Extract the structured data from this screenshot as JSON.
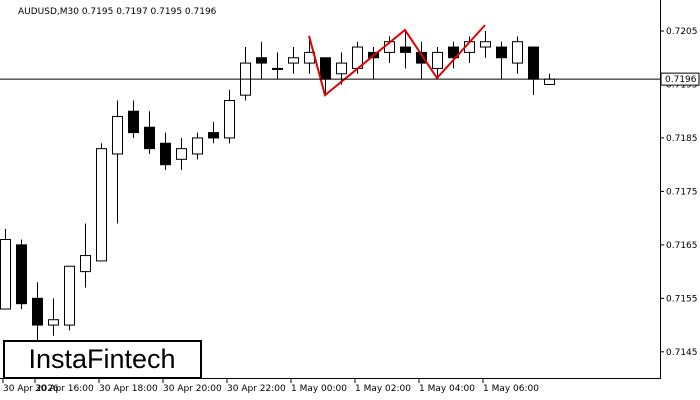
{
  "chart_data": {
    "type": "candlestick",
    "title": "AUDUSD,M30  0.7195 0.7197 0.7195 0.7196",
    "categories": [
      "30 Apr 2026",
      null,
      "30 Apr 16:00",
      null,
      null,
      null,
      "30 Apr 18:00",
      null,
      null,
      null,
      "30 Apr 20:00",
      null,
      null,
      null,
      "30 Apr 22:00",
      null,
      null,
      null,
      "1 May 00:00",
      null,
      null,
      null,
      "1 May 02:00",
      null,
      null,
      null,
      "1 May 04:00",
      null,
      null,
      null,
      "1 May 06:00",
      null,
      null,
      null,
      null
    ],
    "open": [
      0.7153,
      0.7165,
      0.7155,
      0.715,
      0.715,
      0.716,
      0.7162,
      0.7182,
      0.719,
      0.7187,
      0.7184,
      0.7181,
      0.7182,
      0.7186,
      0.7185,
      0.7193,
      0.72,
      0.7198,
      0.7199,
      0.7199,
      0.72,
      0.7197,
      0.7198,
      0.7201,
      0.7201,
      0.7202,
      0.7201,
      0.7198,
      0.7202,
      0.7201,
      0.7202,
      0.7202,
      0.7199,
      0.7202,
      0.7195
    ],
    "high": [
      0.7168,
      0.7166,
      0.7158,
      0.7155,
      0.7161,
      0.7169,
      0.7184,
      0.7192,
      0.7192,
      0.719,
      0.7186,
      0.7185,
      0.7186,
      0.7188,
      0.7194,
      0.7202,
      0.7203,
      0.7201,
      0.7202,
      0.7204,
      0.72,
      0.7201,
      0.7203,
      0.7202,
      0.7204,
      0.7205,
      0.7203,
      0.7202,
      0.7203,
      0.7204,
      0.7205,
      0.7203,
      0.7204,
      0.7202,
      0.7197
    ],
    "low": [
      0.7153,
      0.7153,
      0.7147,
      0.7148,
      0.7149,
      0.7157,
      0.7162,
      0.7169,
      0.7185,
      0.7182,
      0.7179,
      0.7179,
      0.7181,
      0.7184,
      0.7184,
      0.7192,
      0.7196,
      0.7196,
      0.7197,
      0.7197,
      0.7193,
      0.7195,
      0.7197,
      0.7196,
      0.7199,
      0.7198,
      0.7196,
      0.7196,
      0.7198,
      0.7199,
      0.72,
      0.7196,
      0.7197,
      0.7193,
      0.7195
    ],
    "close": [
      0.7166,
      0.7154,
      0.715,
      0.7151,
      0.7161,
      0.7163,
      0.7183,
      0.7189,
      0.7186,
      0.7183,
      0.718,
      0.7183,
      0.7185,
      0.7185,
      0.7192,
      0.7199,
      0.7199,
      0.7198,
      0.72,
      0.7201,
      0.7196,
      0.7199,
      0.7202,
      0.72,
      0.7203,
      0.7201,
      0.7199,
      0.7201,
      0.72,
      0.7203,
      0.7203,
      0.72,
      0.7203,
      0.7196,
      0.7196
    ],
    "pattern": {
      "color": "#e00000",
      "x": [
        19,
        20,
        25,
        27,
        30
      ],
      "values": [
        0.72041,
        0.7193,
        0.72052,
        0.71962,
        0.72061
      ]
    },
    "last_price": 0.7196,
    "ylim": [
      0.71401,
      0.72108
    ],
    "yticks": [
      0.7205,
      0.7195,
      0.7185,
      0.7175,
      0.7165,
      0.7155,
      0.7145
    ],
    "watermark": "InstaFintech"
  }
}
